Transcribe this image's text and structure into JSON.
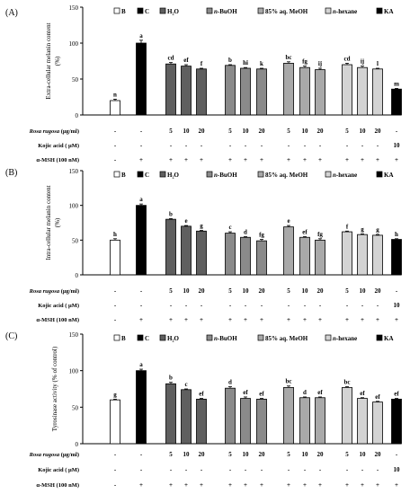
{
  "chart_data": [
    {
      "type": "bar",
      "panel_label": "(A)",
      "ylabel": [
        "Extra-cellular melanin content",
        "(%)"
      ],
      "ylim": [
        0,
        150
      ],
      "yticks": [
        0,
        50,
        100,
        150
      ],
      "legend": [
        "B",
        "C",
        "H₂O",
        "n-BuOH",
        "85% aq. MeOH",
        "n-hexane",
        "KA"
      ],
      "bars": [
        {
          "group": "B",
          "value": 20,
          "letter": "n",
          "err": 2
        },
        {
          "group": "C",
          "value": 100,
          "letter": "a",
          "err": 4
        },
        {
          "group": "H₂O",
          "dose": "5",
          "value": 71,
          "letter": "cd",
          "err": 2
        },
        {
          "group": "H₂O",
          "dose": "10",
          "value": 68,
          "letter": "ef",
          "err": 2
        },
        {
          "group": "H₂O",
          "dose": "20",
          "value": 64,
          "letter": "f",
          "err": 1
        },
        {
          "group": "n-BuOH",
          "dose": "5",
          "value": 69,
          "letter": "b",
          "err": 1
        },
        {
          "group": "n-BuOH",
          "dose": "10",
          "value": 65,
          "letter": "hi",
          "err": 1
        },
        {
          "group": "n-BuOH",
          "dose": "20",
          "value": 64,
          "letter": "k",
          "err": 1
        },
        {
          "group": "85% aq. MeOH",
          "dose": "5",
          "value": 72,
          "letter": "bc",
          "err": 2
        },
        {
          "group": "85% aq. MeOH",
          "dose": "10",
          "value": 66,
          "letter": "fg",
          "err": 2
        },
        {
          "group": "85% aq. MeOH",
          "dose": "20",
          "value": 63,
          "letter": "ij",
          "err": 2
        },
        {
          "group": "n-hexane",
          "dose": "5",
          "value": 70,
          "letter": "cd",
          "err": 2
        },
        {
          "group": "n-hexane",
          "dose": "10",
          "value": 66,
          "letter": "ij",
          "err": 2
        },
        {
          "group": "n-hexane",
          "dose": "20",
          "value": 64,
          "letter": "l",
          "err": 1
        },
        {
          "group": "KA",
          "value": 36,
          "letter": "m",
          "err": 1
        }
      ],
      "rows": [
        {
          "label": "Rosa rugosa (μg/ml)",
          "cells": [
            "-",
            "-",
            "5",
            "10",
            "20",
            "5",
            "10",
            "20",
            "5",
            "10",
            "20",
            "5",
            "10",
            "20",
            "-"
          ]
        },
        {
          "label": "Kojic acid ( μM)",
          "cells": [
            "-",
            "-",
            "-",
            "-",
            "-",
            "-",
            "-",
            "-",
            "-",
            "-",
            "-",
            "-",
            "-",
            "-",
            "10"
          ]
        },
        {
          "label": "α-MSH (100 nM)",
          "cells": [
            "-",
            "+",
            "+",
            "+",
            "+",
            "+",
            "+",
            "+",
            "+",
            "+",
            "+",
            "+",
            "+",
            "+",
            "+"
          ]
        }
      ]
    },
    {
      "type": "bar",
      "panel_label": "(B)",
      "ylabel": [
        "Intra-cellular melanin content",
        "(%)"
      ],
      "ylim": [
        0,
        150
      ],
      "yticks": [
        0,
        50,
        100,
        150
      ],
      "legend": [
        "B",
        "C",
        "H₂O",
        "n-BuOH",
        "85% aq. MeOH",
        "n-hexane",
        "KA"
      ],
      "bars": [
        {
          "group": "B",
          "value": 50,
          "letter": "h",
          "err": 2
        },
        {
          "group": "C",
          "value": 100,
          "letter": "a",
          "err": 2
        },
        {
          "group": "H₂O",
          "dose": "5",
          "value": 80,
          "letter": "b",
          "err": 1
        },
        {
          "group": "H₂O",
          "dose": "10",
          "value": 70,
          "letter": "e",
          "err": 1
        },
        {
          "group": "H₂O",
          "dose": "20",
          "value": 63,
          "letter": "g",
          "err": 1
        },
        {
          "group": "n-BuOH",
          "dose": "5",
          "value": 60,
          "letter": "c",
          "err": 2
        },
        {
          "group": "n-BuOH",
          "dose": "10",
          "value": 54,
          "letter": "d",
          "err": 1
        },
        {
          "group": "n-BuOH",
          "dose": "20",
          "value": 49,
          "letter": "fg",
          "err": 2
        },
        {
          "group": "85% aq. MeOH",
          "dose": "5",
          "value": 69,
          "letter": "e",
          "err": 2
        },
        {
          "group": "85% aq. MeOH",
          "dose": "10",
          "value": 54,
          "letter": "ef",
          "err": 1
        },
        {
          "group": "85% aq. MeOH",
          "dose": "20",
          "value": 50,
          "letter": "fg",
          "err": 2
        },
        {
          "group": "n-hexane",
          "dose": "5",
          "value": 62,
          "letter": "f",
          "err": 1
        },
        {
          "group": "n-hexane",
          "dose": "10",
          "value": 58,
          "letter": "g",
          "err": 1
        },
        {
          "group": "n-hexane",
          "dose": "20",
          "value": 57,
          "letter": "g",
          "err": 1
        },
        {
          "group": "KA",
          "value": 51,
          "letter": "h",
          "err": 1
        }
      ],
      "rows": [
        {
          "label": "Rosa rugosa (μg/ml)",
          "cells": [
            "-",
            "-",
            "5",
            "10",
            "20",
            "5",
            "10",
            "20",
            "5",
            "10",
            "20",
            "5",
            "10",
            "20",
            "-"
          ]
        },
        {
          "label": "Kojic acid ( μM)",
          "cells": [
            "-",
            "-",
            "-",
            "-",
            "-",
            "-",
            "-",
            "-",
            "-",
            "-",
            "-",
            "-",
            "-",
            "-",
            "10"
          ]
        },
        {
          "label": "α-MSH (100 nM)",
          "cells": [
            "-",
            "+",
            "+",
            "+",
            "+",
            "+",
            "+",
            "+",
            "+",
            "+",
            "+",
            "+",
            "+",
            "+",
            "+"
          ]
        }
      ]
    },
    {
      "type": "bar",
      "panel_label": "(C)",
      "ylabel": [
        "Tyrosinase activity (% of control)"
      ],
      "ylim": [
        0,
        150
      ],
      "yticks": [
        0,
        50,
        100,
        150
      ],
      "legend": [
        "B",
        "C",
        "H₂O",
        "n-BuOH",
        "85% aq. MeOH",
        "n-hexane",
        "KA"
      ],
      "bars": [
        {
          "group": "B",
          "value": 60,
          "letter": "g",
          "err": 1
        },
        {
          "group": "C",
          "value": 100,
          "letter": "a",
          "err": 2
        },
        {
          "group": "H₂O",
          "dose": "5",
          "value": 82,
          "letter": "b",
          "err": 2
        },
        {
          "group": "H₂O",
          "dose": "10",
          "value": 74,
          "letter": "c",
          "err": 1
        },
        {
          "group": "H₂O",
          "dose": "20",
          "value": 61,
          "letter": "ef",
          "err": 1
        },
        {
          "group": "n-BuOH",
          "dose": "5",
          "value": 76,
          "letter": "d",
          "err": 2
        },
        {
          "group": "n-BuOH",
          "dose": "10",
          "value": 62,
          "letter": "ef",
          "err": 2
        },
        {
          "group": "n-BuOH",
          "dose": "20",
          "value": 61,
          "letter": "ef",
          "err": 1
        },
        {
          "group": "85% aq. MeOH",
          "dose": "5",
          "value": 77,
          "letter": "bc",
          "err": 2
        },
        {
          "group": "85% aq. MeOH",
          "dose": "10",
          "value": 63,
          "letter": "d",
          "err": 1
        },
        {
          "group": "85% aq. MeOH",
          "dose": "20",
          "value": 63,
          "letter": "ef",
          "err": 1
        },
        {
          "group": "n-hexane",
          "dose": "5",
          "value": 77,
          "letter": "bc",
          "err": 1
        },
        {
          "group": "n-hexane",
          "dose": "10",
          "value": 62,
          "letter": "ef",
          "err": 1
        },
        {
          "group": "n-hexane",
          "dose": "20",
          "value": 57,
          "letter": "ef",
          "err": 1
        },
        {
          "group": "KA",
          "value": 61,
          "letter": "ef",
          "err": 1
        }
      ],
      "rows": [
        {
          "label": "Rosa rugosa (μg/ml)",
          "cells": [
            "-",
            "-",
            "5",
            "10",
            "20",
            "5",
            "10",
            "20",
            "5",
            "10",
            "20",
            "5",
            "10",
            "20",
            "-"
          ]
        },
        {
          "label": "Kojic acid ( μM)",
          "cells": [
            "-",
            "-",
            "-",
            "-",
            "-",
            "-",
            "-",
            "-",
            "-",
            "-",
            "-",
            "-",
            "-",
            "-",
            "10"
          ]
        },
        {
          "label": "α-MSH (100 nM)",
          "cells": [
            "-",
            "+",
            "+",
            "+",
            "+",
            "+",
            "+",
            "+",
            "+",
            "+",
            "+",
            "+",
            "+",
            "+",
            "+"
          ]
        }
      ]
    }
  ],
  "colors": {
    "B": "#ffffff",
    "C": "#000000",
    "H₂O": "#5f5f5f",
    "n-BuOH": "#8a8a8a",
    "85% aq. MeOH": "#a9a9a9",
    "n-hexane": "#d3d3d3",
    "KA": "#000000",
    "axis": "#000000"
  }
}
